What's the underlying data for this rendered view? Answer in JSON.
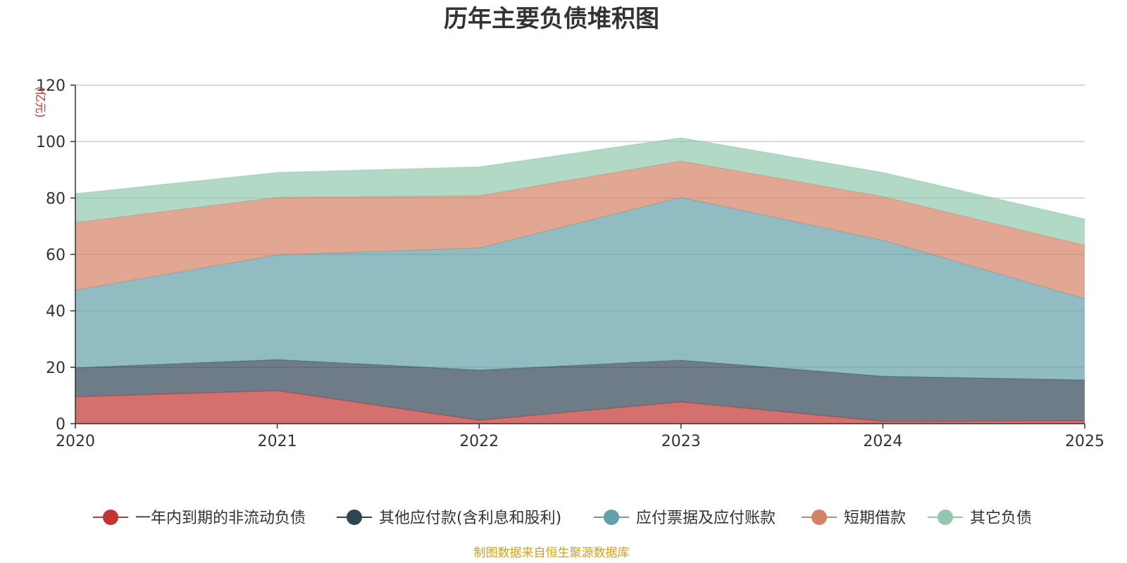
{
  "chart_data": {
    "type": "area",
    "stacked": true,
    "title": "历年主要负债堆积图",
    "ylabel": "(亿元)",
    "xlabel": "",
    "x": [
      "2020",
      "2021",
      "2022",
      "2023",
      "2024",
      "2025"
    ],
    "ylim": [
      0,
      120
    ],
    "yticks": [
      0,
      20,
      40,
      60,
      80,
      100,
      120
    ],
    "grid": true,
    "legend_position": "bottom",
    "series": [
      {
        "name": "一年内到期的非流动负债",
        "color": "#c23531",
        "values": [
          9.5,
          11.7,
          1.2,
          7.7,
          0.8,
          1.0
        ]
      },
      {
        "name": "其他应付款(含利息和股利)",
        "color": "#2f4554",
        "values": [
          10.3,
          11.0,
          17.8,
          14.8,
          16.0,
          14.5
        ]
      },
      {
        "name": "应付票据及应付账款",
        "color": "#61a0a8",
        "values": [
          27.5,
          37.1,
          43.3,
          57.7,
          48.2,
          28.8
        ]
      },
      {
        "name": "短期借款",
        "color": "#d48265",
        "values": [
          24.0,
          20.4,
          18.5,
          12.9,
          15.5,
          18.9
        ]
      },
      {
        "name": "其它负债",
        "color": "#91c7ae",
        "values": [
          10.2,
          8.8,
          10.2,
          8.2,
          8.5,
          9.3
        ]
      }
    ]
  },
  "footer": {
    "source": "制图数据来自恒生聚源数据库",
    "source_color": "#d4a017"
  },
  "colors": {
    "unit": "#e8251e",
    "axis": "#333333",
    "grid": "#cccccc"
  }
}
